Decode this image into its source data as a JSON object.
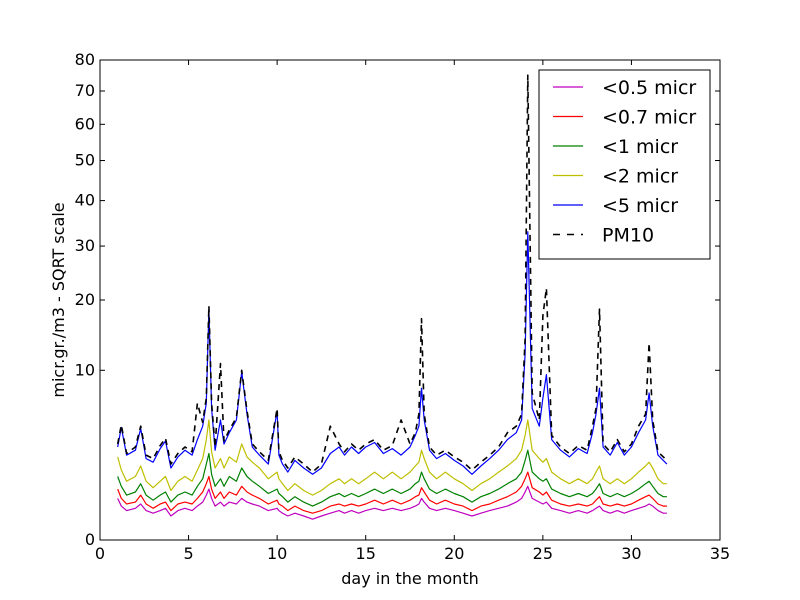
{
  "chart_data": {
    "type": "line",
    "xlabel": "day in the month",
    "ylabel": "micr.gr./m3 - SQRT scale",
    "y_scale": "sqrt",
    "xlim": [
      0,
      35
    ],
    "ylim": [
      0,
      80
    ],
    "x_ticks": [
      0,
      5,
      10,
      15,
      20,
      25,
      30,
      35
    ],
    "y_ticks": [
      0,
      10,
      20,
      30,
      40,
      50,
      60,
      70,
      80
    ],
    "legend_position": "top-right",
    "grid": false,
    "x": [
      1.0,
      1.2,
      1.5,
      2.0,
      2.3,
      2.6,
      3.0,
      3.4,
      3.7,
      4.0,
      4.4,
      4.8,
      5.2,
      5.5,
      5.8,
      6.0,
      6.15,
      6.3,
      6.5,
      6.8,
      7.0,
      7.3,
      7.7,
      8.0,
      8.3,
      8.6,
      9.0,
      9.5,
      10.0,
      10.1,
      10.3,
      10.6,
      11.0,
      11.5,
      12.0,
      12.5,
      13.0,
      13.5,
      13.8,
      14.2,
      14.6,
      15.0,
      15.5,
      16.0,
      16.5,
      17.0,
      17.5,
      17.8,
      18.0,
      18.15,
      18.3,
      18.6,
      19.0,
      19.5,
      20.0,
      20.5,
      21.0,
      21.5,
      22.0,
      22.5,
      23.0,
      23.5,
      23.8,
      24.0,
      24.15,
      24.4,
      24.8,
      25.0,
      25.2,
      25.5,
      26.0,
      26.5,
      27.0,
      27.5,
      27.8,
      28.0,
      28.2,
      28.4,
      28.8,
      29.2,
      29.6,
      30.0,
      30.4,
      30.8,
      31.0,
      31.2,
      31.5,
      31.8,
      32.0
    ],
    "series": [
      {
        "name": "<0.5 micr",
        "color": "#bf00bf",
        "style": "solid",
        "values": [
          0.6,
          0.4,
          0.3,
          0.35,
          0.45,
          0.3,
          0.25,
          0.3,
          0.35,
          0.2,
          0.3,
          0.35,
          0.3,
          0.4,
          0.5,
          0.7,
          0.9,
          0.6,
          0.4,
          0.5,
          0.4,
          0.5,
          0.45,
          0.6,
          0.5,
          0.45,
          0.4,
          0.3,
          0.35,
          0.3,
          0.25,
          0.2,
          0.25,
          0.2,
          0.15,
          0.2,
          0.25,
          0.3,
          0.25,
          0.3,
          0.25,
          0.3,
          0.35,
          0.3,
          0.35,
          0.3,
          0.35,
          0.4,
          0.45,
          0.6,
          0.5,
          0.35,
          0.3,
          0.35,
          0.3,
          0.25,
          0.2,
          0.25,
          0.3,
          0.35,
          0.4,
          0.5,
          0.6,
          0.8,
          1.0,
          0.6,
          0.5,
          0.45,
          0.5,
          0.35,
          0.3,
          0.25,
          0.3,
          0.25,
          0.3,
          0.35,
          0.4,
          0.3,
          0.25,
          0.3,
          0.25,
          0.3,
          0.35,
          0.4,
          0.45,
          0.4,
          0.3,
          0.25,
          0.25
        ]
      },
      {
        "name": "<0.7 micr",
        "color": "#ff0000",
        "style": "solid",
        "values": [
          0.9,
          0.6,
          0.45,
          0.5,
          0.7,
          0.45,
          0.35,
          0.45,
          0.5,
          0.3,
          0.45,
          0.5,
          0.45,
          0.6,
          0.8,
          1.1,
          1.4,
          0.9,
          0.6,
          0.8,
          0.6,
          0.8,
          0.7,
          1.0,
          0.8,
          0.7,
          0.6,
          0.45,
          0.55,
          0.45,
          0.4,
          0.3,
          0.4,
          0.3,
          0.25,
          0.3,
          0.4,
          0.45,
          0.4,
          0.45,
          0.4,
          0.45,
          0.55,
          0.45,
          0.55,
          0.45,
          0.55,
          0.65,
          0.7,
          0.95,
          0.8,
          0.55,
          0.45,
          0.55,
          0.45,
          0.4,
          0.3,
          0.4,
          0.45,
          0.55,
          0.65,
          0.8,
          1.0,
          1.3,
          1.6,
          0.95,
          0.8,
          0.7,
          0.8,
          0.55,
          0.45,
          0.4,
          0.45,
          0.4,
          0.45,
          0.55,
          0.65,
          0.45,
          0.4,
          0.45,
          0.4,
          0.45,
          0.55,
          0.65,
          0.7,
          0.6,
          0.45,
          0.4,
          0.4
        ]
      },
      {
        "name": "<1 micr",
        "color": "#008000",
        "style": "solid",
        "values": [
          1.4,
          1.0,
          0.7,
          0.8,
          1.1,
          0.7,
          0.55,
          0.7,
          0.8,
          0.5,
          0.7,
          0.8,
          0.7,
          1.0,
          1.3,
          2.0,
          2.6,
          1.5,
          1.0,
          1.3,
          1.0,
          1.4,
          1.2,
          1.8,
          1.4,
          1.2,
          1.0,
          0.75,
          0.9,
          0.75,
          0.65,
          0.5,
          0.65,
          0.5,
          0.4,
          0.5,
          0.65,
          0.75,
          0.65,
          0.75,
          0.65,
          0.75,
          0.9,
          0.75,
          0.9,
          0.75,
          0.9,
          1.1,
          1.2,
          1.6,
          1.3,
          0.9,
          0.75,
          0.9,
          0.75,
          0.65,
          0.5,
          0.65,
          0.75,
          0.9,
          1.1,
          1.3,
          1.6,
          2.2,
          2.8,
          1.6,
          1.3,
          1.2,
          1.3,
          0.9,
          0.75,
          0.65,
          0.75,
          0.65,
          0.75,
          0.9,
          1.1,
          0.75,
          0.65,
          0.75,
          0.65,
          0.75,
          0.9,
          1.1,
          1.2,
          1.0,
          0.75,
          0.65,
          0.65
        ]
      },
      {
        "name": "<2 micr",
        "color": "#bfbf00",
        "style": "solid",
        "values": [
          2.4,
          1.7,
          1.2,
          1.4,
          1.9,
          1.2,
          0.95,
          1.2,
          1.4,
          0.85,
          1.2,
          1.4,
          1.2,
          1.7,
          2.3,
          3.5,
          5.0,
          2.7,
          1.8,
          2.3,
          1.8,
          2.4,
          2.1,
          3.2,
          2.4,
          2.1,
          1.8,
          1.3,
          1.6,
          1.3,
          1.1,
          0.85,
          1.1,
          0.85,
          0.7,
          0.85,
          1.1,
          1.3,
          1.1,
          1.3,
          1.1,
          1.3,
          1.6,
          1.3,
          1.6,
          1.3,
          1.6,
          1.9,
          2.1,
          2.8,
          2.3,
          1.6,
          1.3,
          1.6,
          1.3,
          1.1,
          0.85,
          1.1,
          1.3,
          1.6,
          1.9,
          2.3,
          2.8,
          3.8,
          5.0,
          2.8,
          2.3,
          2.1,
          2.3,
          1.6,
          1.3,
          1.1,
          1.3,
          1.1,
          1.3,
          1.6,
          1.9,
          1.3,
          1.1,
          1.3,
          1.1,
          1.3,
          1.6,
          1.9,
          2.1,
          1.8,
          1.3,
          1.1,
          1.1
        ]
      },
      {
        "name": "<5 micr",
        "color": "#0000ff",
        "style": "solid",
        "values": [
          3.0,
          4.4,
          2.5,
          2.8,
          4.3,
          2.3,
          2.1,
          2.9,
          3.4,
          1.8,
          2.4,
          2.8,
          2.5,
          3.5,
          4.5,
          6.5,
          18.5,
          6.0,
          2.8,
          5.0,
          3.2,
          4.0,
          5.0,
          9.8,
          5.5,
          3.0,
          2.5,
          2.0,
          5.8,
          2.5,
          2.0,
          1.6,
          2.2,
          1.8,
          1.5,
          1.8,
          2.6,
          3.0,
          2.5,
          3.0,
          2.6,
          3.0,
          3.3,
          2.6,
          2.9,
          2.5,
          3.0,
          3.8,
          4.5,
          8.0,
          5.0,
          2.8,
          2.3,
          2.6,
          2.2,
          1.9,
          1.5,
          1.9,
          2.3,
          2.8,
          3.5,
          4.0,
          5.0,
          12.0,
          33.0,
          6.0,
          4.5,
          7.0,
          9.5,
          3.5,
          2.8,
          2.4,
          2.9,
          2.6,
          4.0,
          5.5,
          8.0,
          3.0,
          2.5,
          3.3,
          2.5,
          3.0,
          4.0,
          5.0,
          7.5,
          4.5,
          2.5,
          2.2,
          2.0
        ]
      },
      {
        "name": "PM10",
        "color": "#000000",
        "style": "dashed",
        "values": [
          3.2,
          4.6,
          2.6,
          3.0,
          4.5,
          2.5,
          2.3,
          3.1,
          3.6,
          2.0,
          2.6,
          3.0,
          2.7,
          6.5,
          4.8,
          7.0,
          19.0,
          6.5,
          3.0,
          10.8,
          3.4,
          4.2,
          5.2,
          10.0,
          5.8,
          3.2,
          2.7,
          2.2,
          6.0,
          2.7,
          2.2,
          1.8,
          2.4,
          2.0,
          1.6,
          2.0,
          4.5,
          3.2,
          2.7,
          3.2,
          2.8,
          3.2,
          3.5,
          2.8,
          3.1,
          5.0,
          3.2,
          4.0,
          5.5,
          17.0,
          5.5,
          3.0,
          2.5,
          2.8,
          2.4,
          2.1,
          1.7,
          2.1,
          2.5,
          3.0,
          4.0,
          4.5,
          5.5,
          14.0,
          75.0,
          7.5,
          5.0,
          17.5,
          22.0,
          3.8,
          3.0,
          2.6,
          3.1,
          2.8,
          4.5,
          6.0,
          18.5,
          3.2,
          2.7,
          3.5,
          2.7,
          3.2,
          4.5,
          5.5,
          13.5,
          5.0,
          2.7,
          2.4,
          2.2
        ]
      }
    ]
  }
}
